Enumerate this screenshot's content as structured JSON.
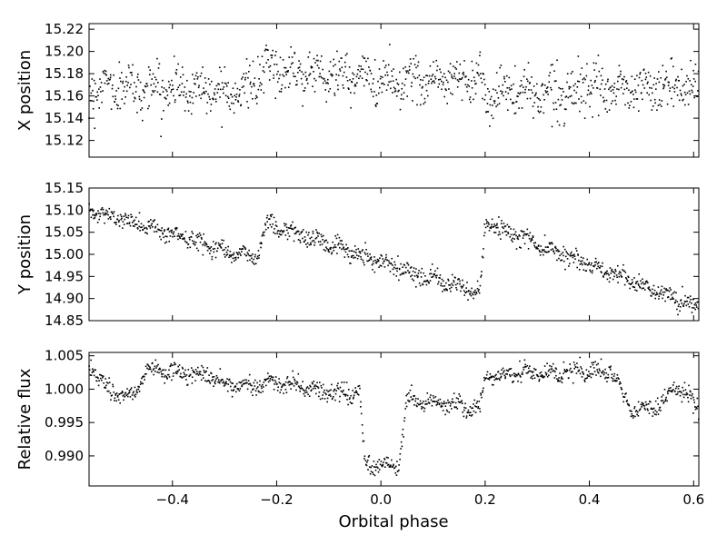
{
  "chart_data": [
    {
      "type": "scatter",
      "ylabel": "X position",
      "xlim": [
        -0.56,
        0.61
      ],
      "ylim": [
        15.105,
        15.225
      ],
      "yticks": [
        "15.12",
        "15.14",
        "15.16",
        "15.18",
        "15.20",
        "15.22"
      ],
      "xticks": [],
      "grid": false,
      "trend": [
        [
          -0.56,
          15.168
        ],
        [
          -0.25,
          15.166
        ],
        [
          -0.22,
          15.185
        ],
        [
          0.0,
          15.174
        ],
        [
          0.19,
          15.176
        ],
        [
          0.2,
          15.162
        ],
        [
          0.61,
          15.168
        ]
      ],
      "scatter_sd": 0.014,
      "n_points": 1100
    },
    {
      "type": "scatter",
      "ylabel": "Y position",
      "xlim": [
        -0.56,
        0.61
      ],
      "ylim": [
        14.85,
        15.15
      ],
      "yticks": [
        "14.85",
        "14.90",
        "14.95",
        "15.00",
        "15.05",
        "15.10",
        "15.15"
      ],
      "xticks": [],
      "grid": false,
      "trend": [
        [
          -0.56,
          15.1
        ],
        [
          -0.24,
          14.99
        ],
        [
          -0.22,
          15.07
        ],
        [
          0.19,
          14.91
        ],
        [
          0.2,
          15.07
        ],
        [
          0.61,
          14.88
        ]
      ],
      "scatter_sd": 0.014,
      "n_points": 1100
    },
    {
      "type": "scatter",
      "ylabel": "Relative flux",
      "xlabel": "Orbital phase",
      "xlim": [
        -0.56,
        0.61
      ],
      "ylim": [
        0.9855,
        1.0055
      ],
      "yticks": [
        "0.990",
        "0.995",
        "1.000",
        "1.005"
      ],
      "xticks": [
        "−0.4",
        "−0.2",
        "0.0",
        "0.2",
        "0.4",
        "0.6"
      ],
      "xtick_values": [
        -0.4,
        -0.2,
        0.0,
        0.2,
        0.4,
        0.6
      ],
      "grid": false,
      "trend": [
        [
          -0.56,
          1.0035
        ],
        [
          -0.54,
          1.0015
        ],
        [
          -0.52,
          0.9995
        ],
        [
          -0.47,
          0.999
        ],
        [
          -0.45,
          1.003
        ],
        [
          -0.4,
          1.0025
        ],
        [
          -0.33,
          1.002
        ],
        [
          -0.3,
          1.0005
        ],
        [
          -0.2,
          1.001
        ],
        [
          -0.1,
          0.9995
        ],
        [
          -0.04,
          0.9995
        ],
        [
          -0.035,
          0.9925
        ],
        [
          -0.03,
          0.9885
        ],
        [
          0.035,
          0.9885
        ],
        [
          0.04,
          0.9925
        ],
        [
          0.05,
          0.9985
        ],
        [
          0.1,
          0.998
        ],
        [
          0.15,
          0.9975
        ],
        [
          0.19,
          0.997
        ],
        [
          0.2,
          1.002
        ],
        [
          0.3,
          1.0025
        ],
        [
          0.44,
          1.0025
        ],
        [
          0.46,
          1.0
        ],
        [
          0.48,
          0.9965
        ],
        [
          0.53,
          0.9975
        ],
        [
          0.57,
          1.0005
        ],
        [
          0.61,
          0.997
        ]
      ],
      "scatter_sd": 0.0009,
      "n_points": 1100
    }
  ]
}
